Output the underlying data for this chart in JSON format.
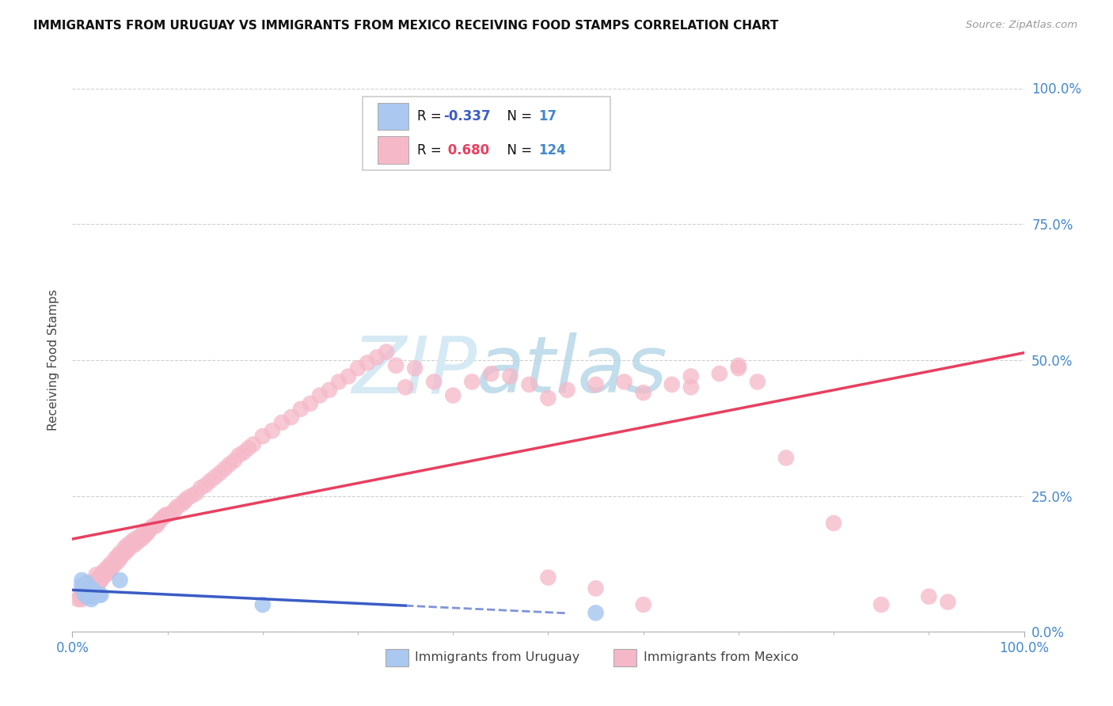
{
  "title": "IMMIGRANTS FROM URUGUAY VS IMMIGRANTS FROM MEXICO RECEIVING FOOD STAMPS CORRELATION CHART",
  "source": "Source: ZipAtlas.com",
  "ylabel": "Receiving Food Stamps",
  "legend_blue_R": "-0.337",
  "legend_blue_N": "17",
  "legend_pink_R": "0.680",
  "legend_pink_N": "124",
  "legend_blue_label": "Immigrants from Uruguay",
  "legend_pink_label": "Immigrants from Mexico",
  "blue_scatter_color": "#aac8f0",
  "pink_scatter_color": "#f5b8c8",
  "blue_line_color": "#3a5cc5",
  "pink_line_color": "#e84060",
  "axis_label_color": "#4488cc",
  "text_color": "#444444",
  "grid_color": "#cccccc",
  "background_color": "#ffffff",
  "ytick_labels": [
    "0.0%",
    "25.0%",
    "50.0%",
    "75.0%",
    "100.0%"
  ],
  "ytick_vals": [
    0.0,
    0.25,
    0.5,
    0.75,
    1.0
  ],
  "blue_points_x": [
    0.01,
    0.01,
    0.012,
    0.015,
    0.015,
    0.015,
    0.018,
    0.02,
    0.02,
    0.02,
    0.022,
    0.025,
    0.028,
    0.03,
    0.05,
    0.2,
    0.55
  ],
  "blue_points_y": [
    0.085,
    0.095,
    0.07,
    0.08,
    0.09,
    0.065,
    0.075,
    0.06,
    0.07,
    0.08,
    0.065,
    0.072,
    0.068,
    0.068,
    0.095,
    0.05,
    0.035
  ],
  "pink_points_x": [
    0.006,
    0.008,
    0.01,
    0.01,
    0.012,
    0.012,
    0.015,
    0.015,
    0.015,
    0.018,
    0.018,
    0.02,
    0.02,
    0.022,
    0.022,
    0.025,
    0.025,
    0.025,
    0.028,
    0.028,
    0.03,
    0.03,
    0.032,
    0.032,
    0.035,
    0.035,
    0.038,
    0.038,
    0.04,
    0.04,
    0.042,
    0.045,
    0.045,
    0.048,
    0.048,
    0.05,
    0.05,
    0.052,
    0.055,
    0.055,
    0.058,
    0.058,
    0.06,
    0.062,
    0.065,
    0.065,
    0.068,
    0.07,
    0.072,
    0.075,
    0.075,
    0.078,
    0.08,
    0.082,
    0.085,
    0.088,
    0.09,
    0.092,
    0.095,
    0.098,
    0.1,
    0.105,
    0.108,
    0.11,
    0.115,
    0.118,
    0.12,
    0.125,
    0.13,
    0.135,
    0.14,
    0.145,
    0.15,
    0.155,
    0.16,
    0.165,
    0.17,
    0.175,
    0.18,
    0.185,
    0.19,
    0.2,
    0.21,
    0.22,
    0.23,
    0.24,
    0.25,
    0.26,
    0.27,
    0.28,
    0.29,
    0.3,
    0.31,
    0.32,
    0.33,
    0.34,
    0.35,
    0.36,
    0.38,
    0.4,
    0.42,
    0.44,
    0.46,
    0.48,
    0.5,
    0.52,
    0.55,
    0.58,
    0.6,
    0.63,
    0.65,
    0.68,
    0.7,
    0.72,
    0.5,
    0.55,
    0.6,
    0.65,
    0.7,
    0.75,
    0.8,
    0.85,
    0.9,
    0.92
  ],
  "pink_points_y": [
    0.06,
    0.065,
    0.06,
    0.075,
    0.07,
    0.08,
    0.065,
    0.08,
    0.09,
    0.075,
    0.085,
    0.075,
    0.085,
    0.08,
    0.092,
    0.085,
    0.095,
    0.105,
    0.09,
    0.1,
    0.095,
    0.105,
    0.1,
    0.11,
    0.105,
    0.115,
    0.11,
    0.12,
    0.115,
    0.125,
    0.12,
    0.125,
    0.135,
    0.13,
    0.14,
    0.135,
    0.145,
    0.14,
    0.145,
    0.155,
    0.15,
    0.16,
    0.155,
    0.165,
    0.16,
    0.17,
    0.165,
    0.175,
    0.17,
    0.175,
    0.185,
    0.18,
    0.185,
    0.19,
    0.195,
    0.195,
    0.2,
    0.205,
    0.21,
    0.215,
    0.215,
    0.22,
    0.225,
    0.23,
    0.235,
    0.24,
    0.245,
    0.25,
    0.255,
    0.265,
    0.27,
    0.278,
    0.285,
    0.292,
    0.3,
    0.308,
    0.315,
    0.325,
    0.33,
    0.338,
    0.345,
    0.36,
    0.37,
    0.385,
    0.395,
    0.41,
    0.42,
    0.435,
    0.445,
    0.46,
    0.47,
    0.485,
    0.495,
    0.505,
    0.515,
    0.49,
    0.45,
    0.485,
    0.46,
    0.435,
    0.46,
    0.475,
    0.47,
    0.455,
    0.43,
    0.445,
    0.455,
    0.46,
    0.44,
    0.455,
    0.47,
    0.475,
    0.485,
    0.46,
    0.1,
    0.08,
    0.05,
    0.45,
    0.49,
    0.32,
    0.2,
    0.05,
    0.065,
    0.055
  ]
}
